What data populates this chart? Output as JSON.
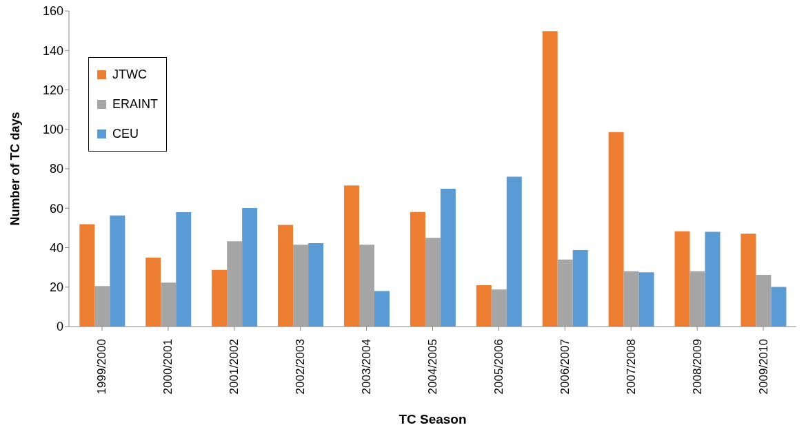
{
  "chart_data": {
    "type": "bar",
    "xlabel": "TC Season",
    "ylabel": "Number of TC days",
    "categories": [
      "1999/2000",
      "2000/2001",
      "2001/2002",
      "2002/2003",
      "2003/2004",
      "2004/2005",
      "2005/2006",
      "2006/2007",
      "2007/2008",
      "2008/2009",
      "2009/2010"
    ],
    "series": [
      {
        "name": "JTWC",
        "color": "#ed7d31",
        "values": [
          51.9,
          34.9,
          28.7,
          51.5,
          71.5,
          58.1,
          21,
          149.8,
          98.6,
          48.3,
          47.1
        ]
      },
      {
        "name": "ERAINT",
        "color": "#a5a5a5",
        "values": [
          20.5,
          22.3,
          43.2,
          41.5,
          41.5,
          45,
          18.8,
          34,
          28,
          28,
          26.2
        ]
      },
      {
        "name": "CEU",
        "color": "#5b9bd5",
        "values": [
          56.3,
          58,
          60.1,
          42.3,
          18,
          69.9,
          76,
          38.8,
          27.5,
          48,
          20.1
        ]
      }
    ],
    "ylim": [
      0,
      160
    ],
    "yticks": [
      0,
      20,
      40,
      60,
      80,
      100,
      120,
      140,
      160
    ],
    "legend": "top left"
  }
}
